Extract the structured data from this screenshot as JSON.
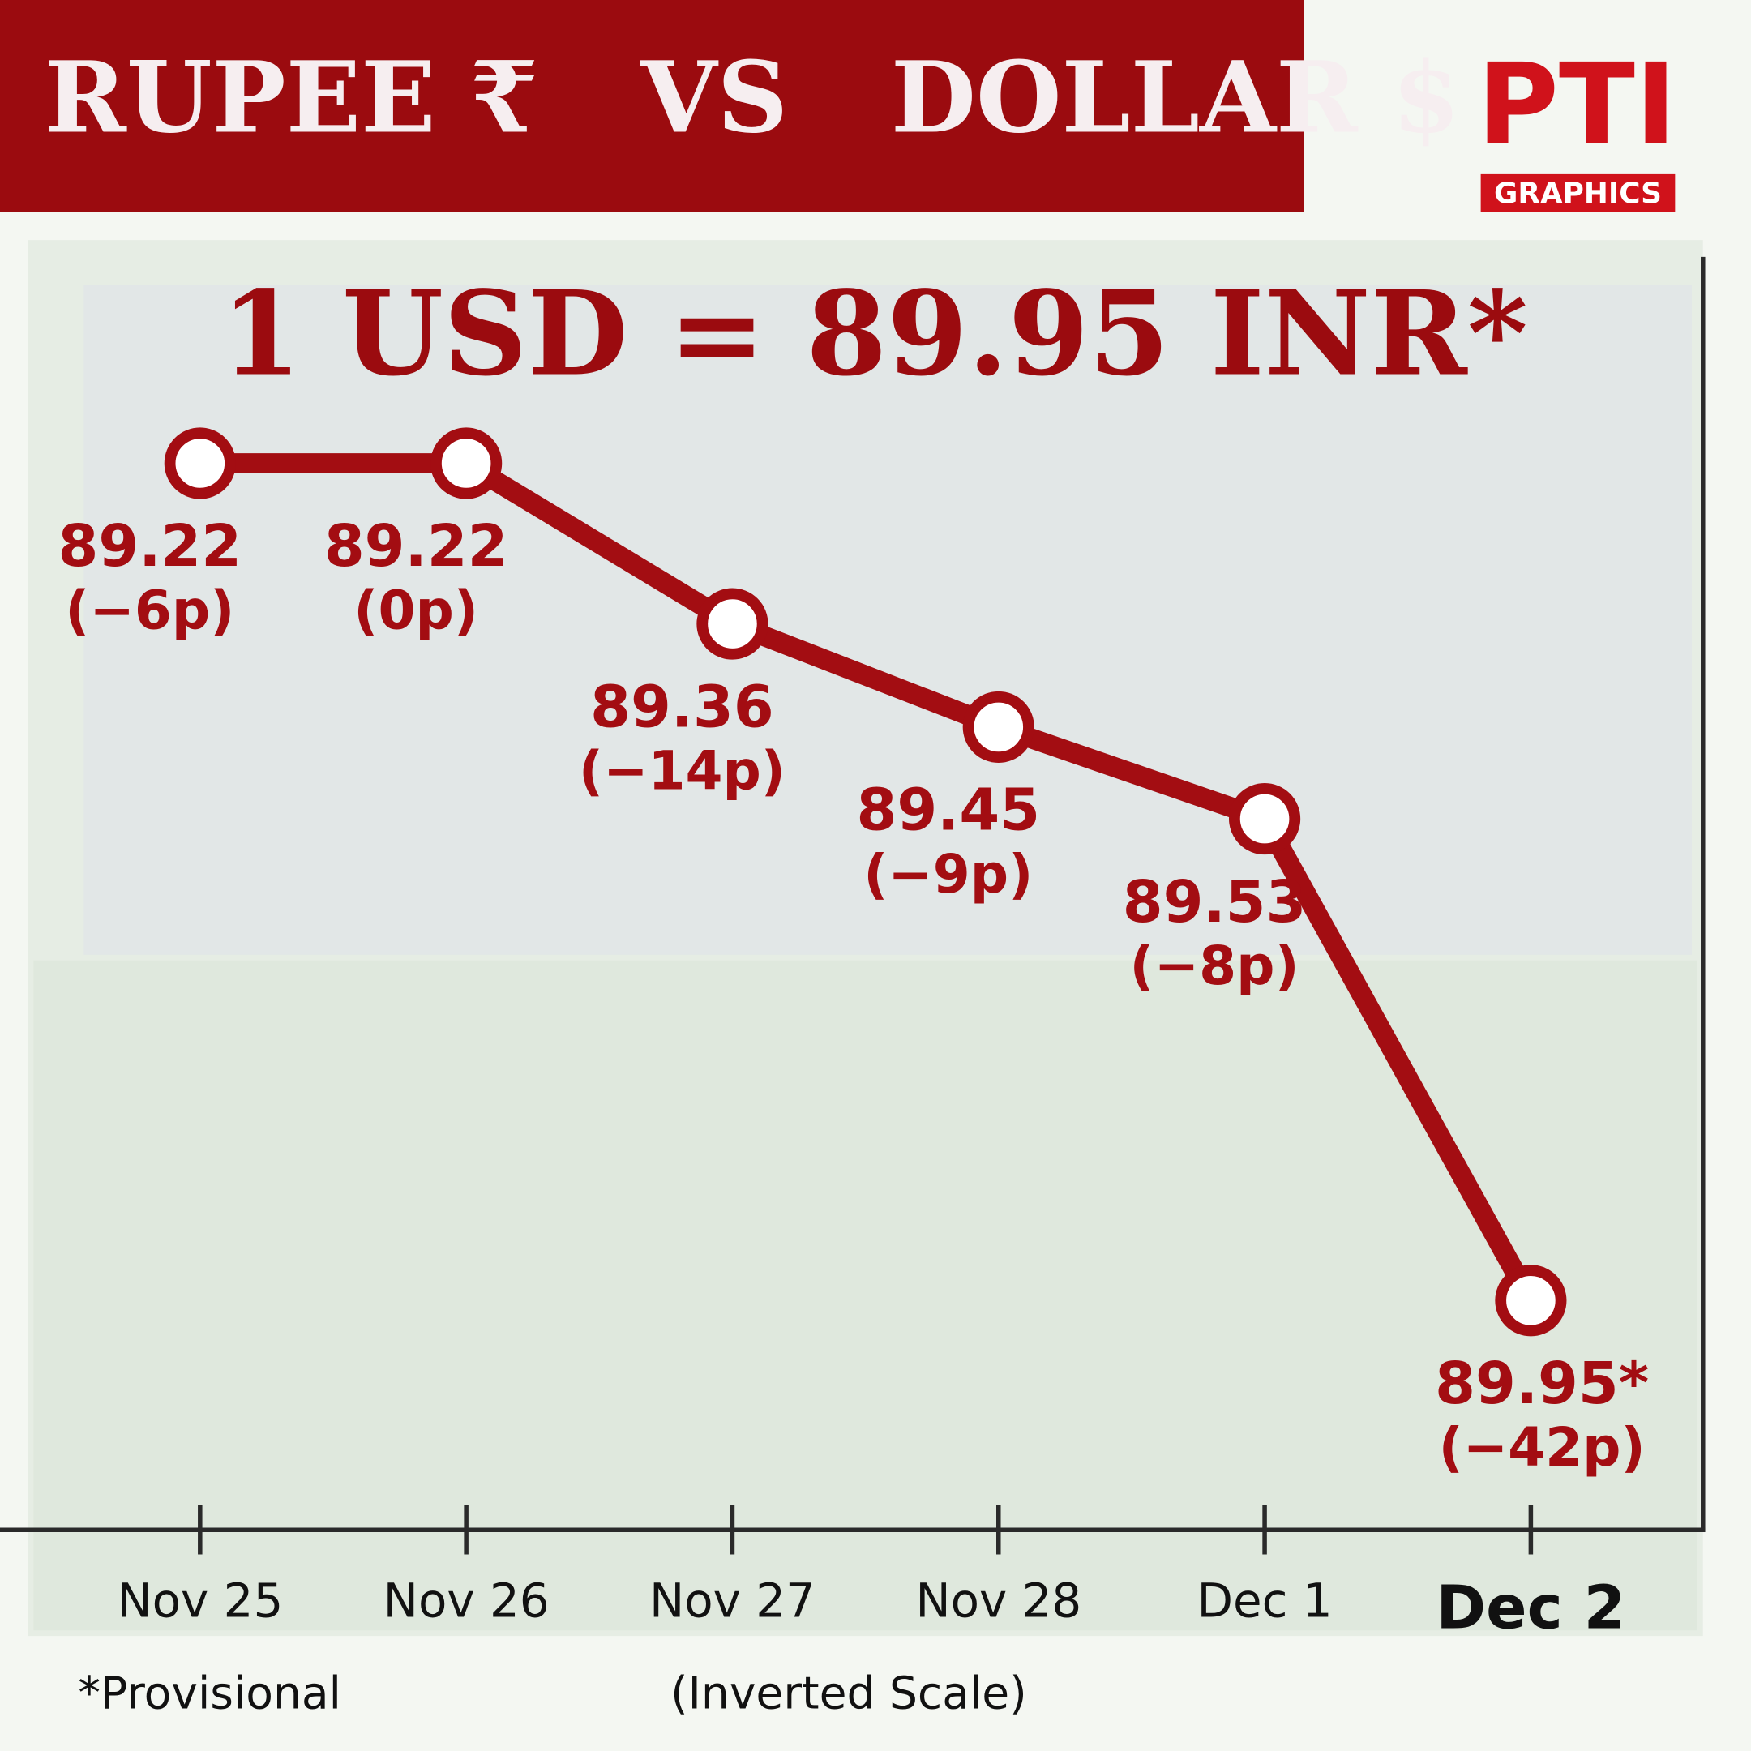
{
  "chart_data": {
    "type": "line",
    "title": "RUPEE ₹   VS   DOLLAR $",
    "subtitle": "1 USD = 89.95 INR*",
    "logo": "PTI",
    "logo_caption": "GRAPHICS",
    "categories": [
      "Nov 25",
      "Nov 26",
      "Nov 27",
      "Nov 28",
      "Dec 1",
      "Dec 2"
    ],
    "values": [
      89.22,
      89.22,
      89.36,
      89.45,
      89.53,
      89.95
    ],
    "value_labels": [
      "89.22",
      "89.22",
      "89.36",
      "89.45",
      "89.53",
      "89.95*"
    ],
    "change_labels": [
      "(−6p)",
      "(0p)",
      "(−14p)",
      "(−9p)",
      "(−8p)",
      "(−42p)"
    ],
    "color": "#a30d12",
    "ylim": [
      89.04,
      90.15
    ],
    "inverted_y": true,
    "footnote": "*Provisional",
    "axis_note": "(Inverted Scale)"
  }
}
